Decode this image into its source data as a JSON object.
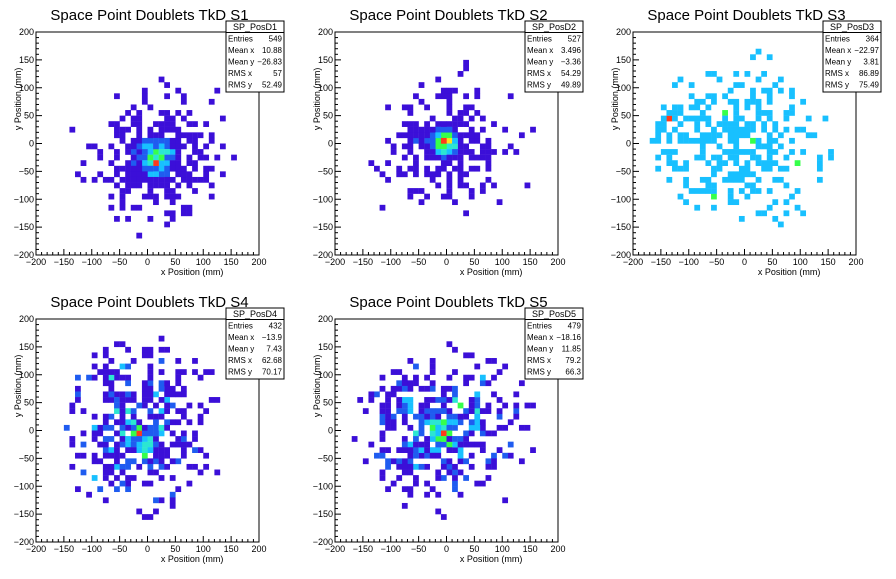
{
  "chart_data": [
    {
      "type": "heatmap",
      "title": "Space Point Doublets TkD S1",
      "xlabel": "x Position (mm)",
      "ylabel": "y Position (mm)",
      "xlim": [
        -200,
        200
      ],
      "ylim": [
        -200,
        200
      ],
      "xticks": [
        "−200",
        "−150",
        "−100",
        "−50",
        "0",
        "50",
        "100",
        "150",
        "200"
      ],
      "yticks": [
        "−200",
        "−150",
        "−100",
        "−50",
        "0",
        "50",
        "100",
        "150",
        "200"
      ],
      "stats": {
        "name": "SP_PosD1",
        "rows": [
          {
            "label": "Entries",
            "value": "549"
          },
          {
            "label": "Mean x",
            "value": "10.88"
          },
          {
            "label": "Mean y",
            "value": "−26.83"
          },
          {
            "label": "RMS x",
            "value": "57"
          },
          {
            "label": "RMS y",
            "value": "52.49"
          }
        ]
      },
      "distribution": {
        "entries": 549,
        "mean_x": 10.88,
        "mean_y": -26.83,
        "rms_x": 57,
        "rms_y": 52.49,
        "core_fraction": 0.45,
        "core_sigma": 18,
        "core_x": 18,
        "core_y": -28,
        "max_level": 6
      }
    },
    {
      "type": "heatmap",
      "title": "Space Point Doublets TkD S2",
      "xlabel": "x Position (mm)",
      "ylabel": "y Position (mm)",
      "xlim": [
        -200,
        200
      ],
      "ylim": [
        -200,
        200
      ],
      "xticks": [
        "−200",
        "−150",
        "−100",
        "−50",
        "0",
        "50",
        "100",
        "150",
        "200"
      ],
      "yticks": [
        "−200",
        "−150",
        "−100",
        "−50",
        "0",
        "50",
        "100",
        "150",
        "200"
      ],
      "stats": {
        "name": "SP_PosD2",
        "rows": [
          {
            "label": "Entries",
            "value": "527"
          },
          {
            "label": "Mean x",
            "value": "3.496"
          },
          {
            "label": "Mean y",
            "value": "−3.36"
          },
          {
            "label": "RMS x",
            "value": "54.29"
          },
          {
            "label": "RMS y",
            "value": "49.89"
          }
        ]
      },
      "distribution": {
        "entries": 527,
        "mean_x": 3.496,
        "mean_y": -3.36,
        "rms_x": 54.29,
        "rms_y": 49.89,
        "core_fraction": 0.5,
        "core_sigma": 14,
        "core_x": -5,
        "core_y": 2,
        "max_level": 6
      }
    },
    {
      "type": "heatmap",
      "title": "Space Point Doublets TkD S3",
      "xlabel": "x Position (mm)",
      "ylabel": "y Position (mm)",
      "xlim": [
        -200,
        200
      ],
      "ylim": [
        -200,
        200
      ],
      "xticks": [
        "−200",
        "−150",
        "−100",
        "−50",
        "0",
        "50",
        "100",
        "150",
        "200"
      ],
      "yticks": [
        "−200",
        "−150",
        "−100",
        "−50",
        "0",
        "50",
        "100",
        "150",
        "200"
      ],
      "stats": {
        "name": "SP_PosD3",
        "rows": [
          {
            "label": "Entries",
            "value": "364"
          },
          {
            "label": "Mean x",
            "value": "−22.97"
          },
          {
            "label": "Mean y",
            "value": "3.81"
          },
          {
            "label": "RMS x",
            "value": "86.89"
          },
          {
            "label": "RMS y",
            "value": "75.49"
          }
        ]
      },
      "distribution": {
        "entries": 364,
        "mean_x": -22.97,
        "mean_y": 3.81,
        "rms_x": 86.89,
        "rms_y": 75.49,
        "core_fraction": 0.05,
        "core_sigma": 20,
        "core_x": -140,
        "core_y": 40,
        "max_level": 6
      }
    },
    {
      "type": "heatmap",
      "title": "Space Point Doublets TkD S4",
      "xlabel": "x Position (mm)",
      "ylabel": "y Position (mm)",
      "xlim": [
        -200,
        200
      ],
      "ylim": [
        -200,
        200
      ],
      "xticks": [
        "−200",
        "−150",
        "−100",
        "−50",
        "0",
        "50",
        "100",
        "150",
        "200"
      ],
      "yticks": [
        "−200",
        "−150",
        "−100",
        "−50",
        "0",
        "50",
        "100",
        "150",
        "200"
      ],
      "stats": {
        "name": "SP_PosD4",
        "rows": [
          {
            "label": "Entries",
            "value": "432"
          },
          {
            "label": "Mean x",
            "value": "−13.9"
          },
          {
            "label": "Mean y",
            "value": "7.43"
          },
          {
            "label": "RMS x",
            "value": "62.68"
          },
          {
            "label": "RMS y",
            "value": "70.17"
          }
        ]
      },
      "distribution": {
        "entries": 432,
        "mean_x": -13.9,
        "mean_y": 7.43,
        "rms_x": 62.68,
        "rms_y": 70.17,
        "core_fraction": 0.15,
        "core_sigma": 18,
        "core_x": -5,
        "core_y": -15,
        "max_level": 6
      }
    },
    {
      "type": "heatmap",
      "title": "Space Point Doublets TkD S5",
      "xlabel": "x Position (mm)",
      "ylabel": "y Position (mm)",
      "xlim": [
        -200,
        200
      ],
      "ylim": [
        -200,
        200
      ],
      "xticks": [
        "−200",
        "−150",
        "−100",
        "−50",
        "0",
        "50",
        "100",
        "150",
        "200"
      ],
      "yticks": [
        "−200",
        "−150",
        "−100",
        "−50",
        "0",
        "50",
        "100",
        "150",
        "200"
      ],
      "stats": {
        "name": "SP_PosD5",
        "rows": [
          {
            "label": "Entries",
            "value": "479"
          },
          {
            "label": "Mean x",
            "value": "−18.16"
          },
          {
            "label": "Mean y",
            "value": "11.85"
          },
          {
            "label": "RMS x",
            "value": "79.2"
          },
          {
            "label": "RMS y",
            "value": "66.3"
          }
        ]
      },
      "distribution": {
        "entries": 479,
        "mean_x": -18.16,
        "mean_y": 11.85,
        "rms_x": 79.2,
        "rms_y": 66.3,
        "core_fraction": 0.12,
        "core_sigma": 16,
        "core_x": -10,
        "core_y": -5,
        "max_level": 6
      }
    }
  ],
  "colors": {
    "palette": [
      "#3b0fd8",
      "#1f5cf0",
      "#18c0ff",
      "#2be6d2",
      "#36ff4a",
      "#ffe21a",
      "#ff3a1a"
    ],
    "frame": "#000000",
    "background": "#ffffff"
  }
}
